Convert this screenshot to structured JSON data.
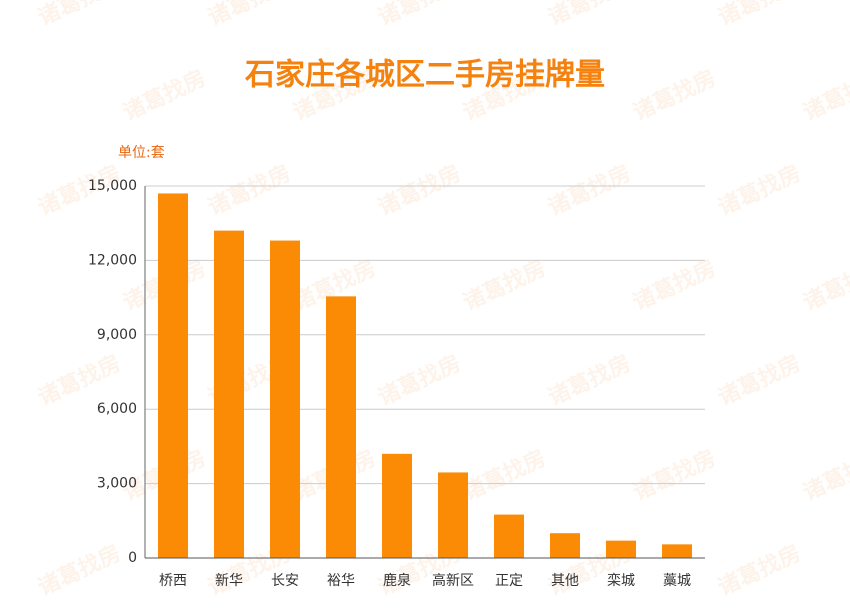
{
  "chart_data": {
    "type": "bar",
    "title": "石家庄各城区二手房挂牌量",
    "y_axis_label": "单位:套",
    "watermark": "诸葛找房",
    "categories": [
      "桥西",
      "新华",
      "长安",
      "裕华",
      "鹿泉",
      "高新区",
      "正定",
      "其他",
      "栾城",
      "藁城"
    ],
    "values": [
      14700,
      13200,
      12800,
      10550,
      4200,
      3450,
      1750,
      1000,
      700,
      550
    ],
    "color": "#fb8a04",
    "ylim": [
      0,
      15000
    ],
    "yticks": [
      0,
      {
        "value": 3000,
        "label": "3,000"
      },
      {
        "value": 6000,
        "label": "6,000"
      },
      {
        "value": 9000,
        "label": "9,000"
      },
      {
        "value": 12000,
        "label": "12,000"
      },
      {
        "value": 15000,
        "label": "15,000"
      }
    ],
    "grid": true
  }
}
